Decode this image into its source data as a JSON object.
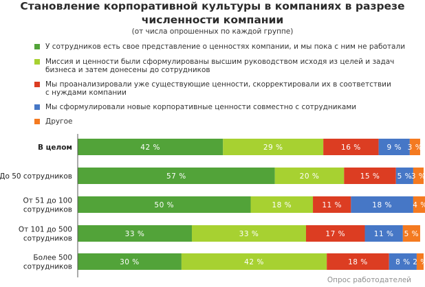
{
  "title_line1": "Становление корпоративной культуры в компаниях в разрезе",
  "title_line2": "численности компании",
  "subtitle": "(от числа опрошенных по каждой группе)",
  "credit": "Опрос работодателей",
  "chart_data": {
    "type": "bar",
    "orientation": "horizontal",
    "stacked": true,
    "xlim": [
      0,
      100
    ],
    "grid": false,
    "legend_position": "top",
    "categories": [
      [
        "В целом"
      ],
      [
        "До 50 сотрудников"
      ],
      [
        "От 51 до 100",
        "сотрудников"
      ],
      [
        "От 101 до 500",
        "сотрудников"
      ],
      [
        "Более 500",
        "сотрудников"
      ]
    ],
    "series": [
      {
        "name": "У сотрудников есть свое представление о ценностях компании, и мы пока с ним не работали",
        "color": "#52a339",
        "values": [
          42,
          57,
          50,
          33,
          30
        ]
      },
      {
        "name": "Миссия и ценности были сформулированы высшим руководством исходя из целей и задач бизнеса и затем донесены до сотрудников",
        "color": "#a7d131",
        "values": [
          29,
          20,
          18,
          33,
          42
        ]
      },
      {
        "name": "Мы проанализировали уже существующие ценности, скорректировали их в соответствии с нуждами компании",
        "color": "#dc3d22",
        "values": [
          16,
          15,
          11,
          17,
          18
        ]
      },
      {
        "name": "Мы сформулировали новые корпоративные ценности совместно с сотрудниками",
        "color": "#4677c6",
        "values": [
          9,
          5,
          18,
          11,
          8
        ]
      },
      {
        "name": "Другое",
        "color": "#f47a20",
        "values": [
          3,
          3,
          4,
          5,
          2
        ]
      }
    ],
    "value_suffix": " %"
  },
  "legend": [
    {
      "lines": [
        "У сотрудников есть свое представление о ценностях компании, и мы пока с ним не работали"
      ],
      "color": "#52a339",
      "icon": "square-swatch"
    },
    {
      "lines": [
        "Миссия и ценности были сформулированы высшим руководством исходя из целей и задач",
        "бизнеса и затем донесены до сотрудников"
      ],
      "color": "#a7d131",
      "icon": "square-swatch"
    },
    {
      "lines": [
        "Мы проанализировали уже существующие ценности, скорректировали их в соответствии",
        "с нуждами компании"
      ],
      "color": "#dc3d22",
      "icon": "square-swatch"
    },
    {
      "lines": [
        "Мы сформулировали новые корпоративные ценности совместно с сотрудниками"
      ],
      "color": "#4677c6",
      "icon": "square-swatch"
    },
    {
      "lines": [
        "Другое"
      ],
      "color": "#f47a20",
      "icon": "square-swatch"
    }
  ]
}
